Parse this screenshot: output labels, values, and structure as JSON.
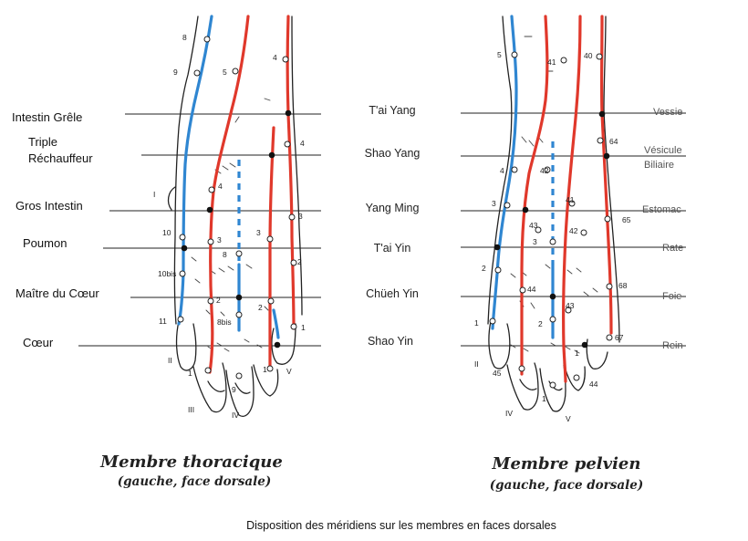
{
  "left_labels": [
    {
      "key": "ig",
      "text": "Intestin Grêle"
    },
    {
      "key": "tr1",
      "text": "Triple"
    },
    {
      "key": "tr2",
      "text": "Réchauffeur"
    },
    {
      "key": "gi",
      "text": "Gros Intestin"
    },
    {
      "key": "pm",
      "text": "Poumon"
    },
    {
      "key": "mc",
      "text": "Maître du Cœur"
    },
    {
      "key": "cr",
      "text": "Cœur"
    }
  ],
  "center_labels": [
    "T'ai Yang",
    "Shao Yang",
    "Yang Ming",
    "T'ai Yin",
    "Chüeh Yin",
    "Shao Yin"
  ],
  "right_labels": [
    "Vessie",
    "Vésicule",
    "Biliaire",
    "Estomac",
    "Rate",
    "Foie",
    "Rein"
  ],
  "titles": {
    "left_title": "Membre thoracique",
    "left_sub": "(gauche, face dorsale)",
    "right_title": "Membre pelvien",
    "right_sub": "(gauche, face dorsale)"
  },
  "caption": "Disposition des méridiens sur les membres en faces dorsales",
  "colors": {
    "yang": "#e0382b",
    "yin": "#2f86d1",
    "line": "#222222"
  },
  "point_labels_left": [
    "8",
    "9",
    "5",
    "4",
    "4",
    "4",
    "I",
    "10",
    "3",
    "3",
    "3",
    "8",
    "10bis",
    "2",
    "2",
    "2",
    "11",
    "8bis",
    "1",
    "II",
    "1",
    "1",
    "9",
    "III",
    "IV",
    "V"
  ],
  "point_labels_right": [
    "5",
    "41",
    "40",
    "64",
    "4",
    "42",
    "3",
    "41",
    "43",
    "42",
    "65",
    "3",
    "2",
    "44",
    "43",
    "68",
    "1",
    "2",
    "67",
    "1",
    "45",
    "44",
    "1",
    "II",
    "IV",
    "V"
  ]
}
